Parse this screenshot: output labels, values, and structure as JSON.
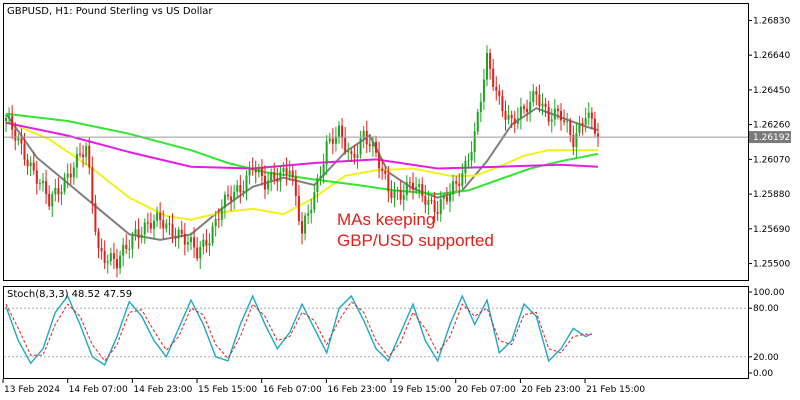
{
  "header": {
    "title": "GBPUSD, H1:  Pound Sterling vs US Dollar",
    "osc_title": "Stoch(8,3,3) 48.52 47.59"
  },
  "annotation": {
    "line1": "MAs keeping",
    "line2": "GBP/USD supported"
  },
  "colors": {
    "bull": "#1fa51f",
    "bear": "#e0201b",
    "ma_fast": "#7f7f7f",
    "ma_yellow": "#f2f21a",
    "ma_green": "#32e632",
    "ma_magenta": "#e61ce6",
    "stoch_main": "#1aa9c9",
    "stoch_signal": "#e0201b",
    "current_price_bg": "#7a7a7a"
  },
  "chart_data": {
    "type": "candlestick",
    "symbol": "GBPUSD",
    "timeframe": "H1",
    "price_ticks": [
      "1.26830",
      "1.26640",
      "1.26450",
      "1.26260",
      "1.26070",
      "1.25880",
      "1.25690",
      "1.25500"
    ],
    "current_price": "1.26192",
    "ylim": [
      1.2541,
      1.2692
    ],
    "x_labels": [
      "13 Feb 2024",
      "14 Feb 07:00",
      "14 Feb 23:00",
      "15 Feb 15:00",
      "16 Feb 07:00",
      "16 Feb 23:00",
      "19 Feb 15:00",
      "20 Feb 07:00",
      "20 Feb 23:00",
      "21 Feb 15:00"
    ],
    "close_path": [
      [
        0,
        1.2628
      ],
      [
        6,
        1.2611
      ],
      [
        14,
        1.2583
      ],
      [
        20,
        1.2599
      ],
      [
        26,
        1.2612
      ],
      [
        30,
        1.2558
      ],
      [
        36,
        1.2549
      ],
      [
        42,
        1.2568
      ],
      [
        50,
        1.2573
      ],
      [
        56,
        1.2567
      ],
      [
        62,
        1.2555
      ],
      [
        66,
        1.2566
      ],
      [
        70,
        1.2581
      ],
      [
        76,
        1.2591
      ],
      [
        80,
        1.2605
      ],
      [
        84,
        1.2592
      ],
      [
        88,
        1.2599
      ],
      [
        92,
        1.2604
      ],
      [
        96,
        1.2565
      ],
      [
        100,
        1.2589
      ],
      [
        104,
        1.2615
      ],
      [
        108,
        1.262
      ],
      [
        112,
        1.2608
      ],
      [
        116,
        1.2621
      ],
      [
        120,
        1.2608
      ],
      [
        124,
        1.2592
      ],
      [
        128,
        1.2588
      ],
      [
        132,
        1.2592
      ],
      [
        136,
        1.2587
      ],
      [
        140,
        1.258
      ],
      [
        144,
        1.2587
      ],
      [
        148,
        1.26
      ],
      [
        152,
        1.262
      ],
      [
        154,
        1.264
      ],
      [
        156,
        1.266
      ],
      [
        160,
        1.264
      ],
      [
        164,
        1.2627
      ],
      [
        168,
        1.2632
      ],
      [
        172,
        1.2645
      ],
      [
        176,
        1.263
      ],
      [
        180,
        1.263
      ],
      [
        184,
        1.2619
      ],
      [
        188,
        1.2632
      ],
      [
        192,
        1.2619
      ]
    ],
    "ma": [
      {
        "name": "fast",
        "points": [
          [
            0,
            1.2632
          ],
          [
            10,
            1.2608
          ],
          [
            20,
            1.2594
          ],
          [
            30,
            1.258
          ],
          [
            40,
            1.2566
          ],
          [
            50,
            1.2563
          ],
          [
            60,
            1.2566
          ],
          [
            70,
            1.258
          ],
          [
            80,
            1.2592
          ],
          [
            90,
            1.2597
          ],
          [
            100,
            1.2593
          ],
          [
            110,
            1.2611
          ],
          [
            118,
            1.262
          ],
          [
            124,
            1.26
          ],
          [
            132,
            1.2591
          ],
          [
            140,
            1.2586
          ],
          [
            148,
            1.259
          ],
          [
            156,
            1.2606
          ],
          [
            164,
            1.2626
          ],
          [
            172,
            1.2635
          ],
          [
            180,
            1.263
          ],
          [
            188,
            1.2625
          ],
          [
            192,
            1.2623
          ]
        ]
      },
      {
        "name": "yellow",
        "points": [
          [
            0,
            1.2628
          ],
          [
            14,
            1.2618
          ],
          [
            28,
            1.2602
          ],
          [
            40,
            1.2586
          ],
          [
            52,
            1.2576
          ],
          [
            60,
            1.2574
          ],
          [
            70,
            1.2578
          ],
          [
            80,
            1.258
          ],
          [
            90,
            1.2577
          ],
          [
            100,
            1.2586
          ],
          [
            110,
            1.2598
          ],
          [
            120,
            1.2601
          ],
          [
            132,
            1.2602
          ],
          [
            144,
            1.2598
          ],
          [
            152,
            1.2598
          ],
          [
            160,
            1.2603
          ],
          [
            168,
            1.2609
          ],
          [
            176,
            1.2612
          ],
          [
            184,
            1.2612
          ],
          [
            192,
            1.2612
          ]
        ]
      },
      {
        "name": "green",
        "points": [
          [
            0,
            1.2632
          ],
          [
            20,
            1.2628
          ],
          [
            40,
            1.2621
          ],
          [
            60,
            1.2612
          ],
          [
            72,
            1.2605
          ],
          [
            84,
            1.26
          ],
          [
            100,
            1.2596
          ],
          [
            114,
            1.2593
          ],
          [
            126,
            1.259
          ],
          [
            140,
            1.2588
          ],
          [
            150,
            1.259
          ],
          [
            160,
            1.2596
          ],
          [
            170,
            1.2602
          ],
          [
            180,
            1.2606
          ],
          [
            192,
            1.261
          ]
        ]
      },
      {
        "name": "magenta",
        "points": [
          [
            0,
            1.2627
          ],
          [
            20,
            1.262
          ],
          [
            40,
            1.2611
          ],
          [
            60,
            1.2603
          ],
          [
            80,
            1.2602
          ],
          [
            100,
            1.2605
          ],
          [
            120,
            1.2607
          ],
          [
            140,
            1.2602
          ],
          [
            160,
            1.2603
          ],
          [
            180,
            1.2604
          ],
          [
            192,
            1.2603
          ]
        ]
      }
    ],
    "oscillator": {
      "name": "Stoch(8,3,3)",
      "ticks": [
        "100.00",
        "80.00",
        "20.00",
        "0.00"
      ],
      "ylim": [
        0,
        100
      ],
      "levels": [
        80,
        20
      ],
      "main_points": [
        [
          0,
          82
        ],
        [
          4,
          40
        ],
        [
          8,
          12
        ],
        [
          12,
          30
        ],
        [
          16,
          75
        ],
        [
          20,
          95
        ],
        [
          24,
          60
        ],
        [
          28,
          20
        ],
        [
          32,
          10
        ],
        [
          36,
          45
        ],
        [
          40,
          88
        ],
        [
          44,
          70
        ],
        [
          48,
          40
        ],
        [
          52,
          20
        ],
        [
          56,
          55
        ],
        [
          60,
          90
        ],
        [
          64,
          60
        ],
        [
          68,
          20
        ],
        [
          72,
          15
        ],
        [
          76,
          60
        ],
        [
          80,
          95
        ],
        [
          84,
          60
        ],
        [
          88,
          30
        ],
        [
          92,
          50
        ],
        [
          96,
          85
        ],
        [
          100,
          55
        ],
        [
          104,
          25
        ],
        [
          108,
          80
        ],
        [
          112,
          95
        ],
        [
          116,
          65
        ],
        [
          120,
          30
        ],
        [
          124,
          15
        ],
        [
          128,
          50
        ],
        [
          132,
          85
        ],
        [
          136,
          40
        ],
        [
          140,
          15
        ],
        [
          144,
          60
        ],
        [
          148,
          95
        ],
        [
          152,
          60
        ],
        [
          156,
          90
        ],
        [
          160,
          25
        ],
        [
          164,
          40
        ],
        [
          168,
          85
        ],
        [
          172,
          70
        ],
        [
          176,
          15
        ],
        [
          180,
          30
        ],
        [
          184,
          55
        ],
        [
          188,
          45
        ],
        [
          190,
          48.52
        ]
      ],
      "signal_points": [
        [
          0,
          85
        ],
        [
          4,
          55
        ],
        [
          8,
          22
        ],
        [
          12,
          22
        ],
        [
          16,
          60
        ],
        [
          20,
          85
        ],
        [
          24,
          70
        ],
        [
          28,
          35
        ],
        [
          32,
          15
        ],
        [
          36,
          35
        ],
        [
          40,
          75
        ],
        [
          44,
          78
        ],
        [
          48,
          52
        ],
        [
          52,
          28
        ],
        [
          56,
          45
        ],
        [
          60,
          80
        ],
        [
          64,
          72
        ],
        [
          68,
          35
        ],
        [
          72,
          18
        ],
        [
          76,
          45
        ],
        [
          80,
          85
        ],
        [
          84,
          70
        ],
        [
          88,
          40
        ],
        [
          92,
          45
        ],
        [
          96,
          75
        ],
        [
          100,
          65
        ],
        [
          104,
          35
        ],
        [
          108,
          65
        ],
        [
          112,
          88
        ],
        [
          116,
          75
        ],
        [
          120,
          40
        ],
        [
          124,
          20
        ],
        [
          128,
          38
        ],
        [
          132,
          75
        ],
        [
          136,
          55
        ],
        [
          140,
          25
        ],
        [
          144,
          45
        ],
        [
          148,
          85
        ],
        [
          152,
          70
        ],
        [
          156,
          80
        ],
        [
          160,
          40
        ],
        [
          164,
          35
        ],
        [
          168,
          72
        ],
        [
          172,
          75
        ],
        [
          176,
          30
        ],
        [
          180,
          25
        ],
        [
          184,
          45
        ],
        [
          188,
          48
        ],
        [
          190,
          47.59
        ]
      ]
    }
  }
}
